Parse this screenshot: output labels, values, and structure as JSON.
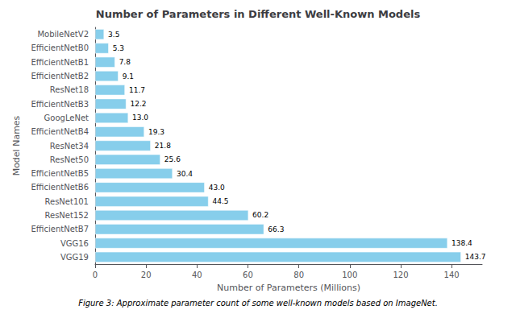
{
  "chart_data": {
    "type": "bar",
    "orientation": "horizontal",
    "title": "Number of Parameters in Different Well-Known Models",
    "xlabel": "Number of Parameters (Millions)",
    "ylabel": "Model Names",
    "caption": "Figure 3: Approximate parameter count of some well-known models based on ImageNet.",
    "categories": [
      "MobileNetV2",
      "EfficientNetB0",
      "EfficientNetB1",
      "EfficientNetB2",
      "ResNet18",
      "EfficientNetB3",
      "GoogLeNet",
      "EfficientNetB4",
      "ResNet34",
      "ResNet50",
      "EfficientNetB5",
      "EfficientNetB6",
      "ResNet101",
      "ResNet152",
      "EfficientNetB7",
      "VGG16",
      "VGG19"
    ],
    "values": [
      3.5,
      5.3,
      7.8,
      9.1,
      11.7,
      12.2,
      13.0,
      19.3,
      21.8,
      25.6,
      30.4,
      43.0,
      44.5,
      60.2,
      66.3,
      138.4,
      143.7
    ],
    "value_labels": [
      "3.5",
      "5.3",
      "7.8",
      "9.1",
      "11.7",
      "12.2",
      "13.0",
      "19.3",
      "21.8",
      "25.6",
      "30.4",
      "43.0",
      "44.5",
      "60.2",
      "66.3",
      "138.4",
      "143.7"
    ],
    "color": "#87CEEB",
    "xlim": [
      0,
      152
    ],
    "xticks": [
      0,
      20,
      40,
      60,
      80,
      100,
      120,
      140
    ],
    "data_labels": true,
    "grid": false
  }
}
